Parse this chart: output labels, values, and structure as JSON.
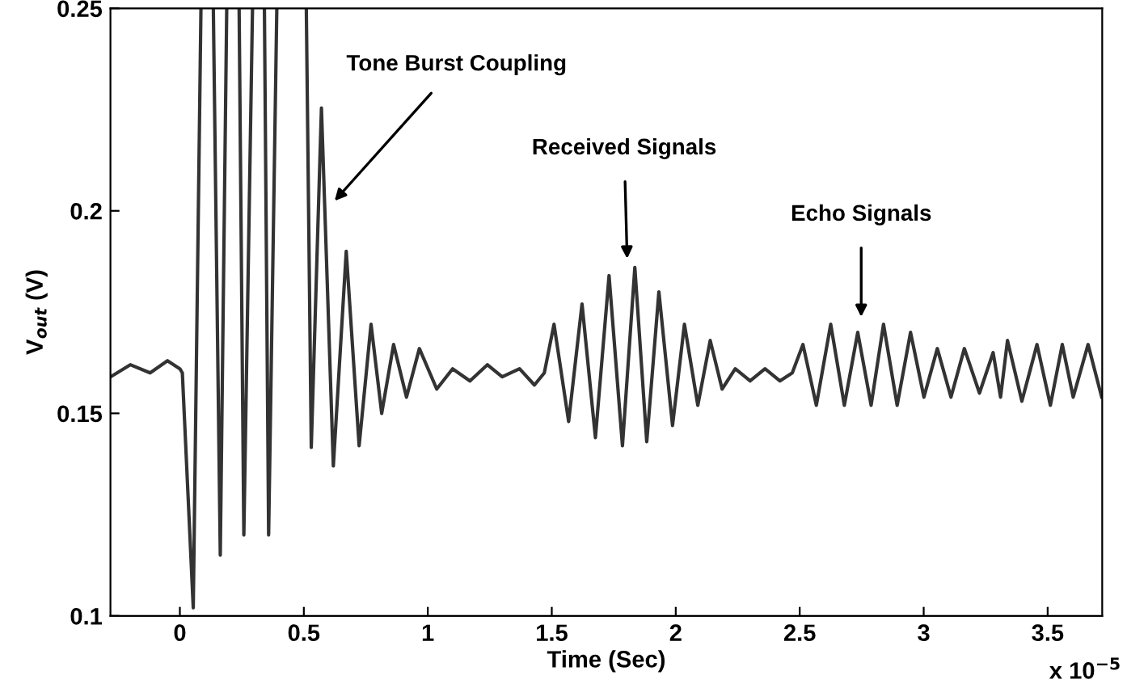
{
  "chart_data": {
    "type": "line",
    "xlabel": "Time (Sec)",
    "ylabel": "V$_{out}$ (V)",
    "xlim": [
      -0.28,
      3.72
    ],
    "ylim": [
      0.1,
      0.25
    ],
    "xticks": [
      0,
      0.5,
      1,
      1.5,
      2,
      2.5,
      3,
      3.5
    ],
    "yticks": [
      0.1,
      0.15,
      0.2,
      0.25
    ],
    "grid": false,
    "marker": "none",
    "line_style": "solid",
    "series": [
      {
        "color": "#333333",
        "x": [
          -0.28,
          -0.2,
          -0.12,
          -0.05,
          0.0,
          0.01,
          0.054,
          0.085,
          0.11,
          0.135,
          0.163,
          0.189,
          0.21,
          0.239,
          0.258,
          0.293,
          0.32,
          0.341,
          0.358,
          0.391,
          0.45,
          0.51,
          0.53,
          0.571,
          0.619,
          0.671,
          0.723,
          0.771,
          0.814,
          0.862,
          0.914,
          0.966,
          1.036,
          1.1,
          1.17,
          1.24,
          1.3,
          1.37,
          1.43,
          1.47,
          1.509,
          1.568,
          1.622,
          1.676,
          1.731,
          1.785,
          1.835,
          1.883,
          1.932,
          1.987,
          2.035,
          2.089,
          2.139,
          2.187,
          2.24,
          2.3,
          2.36,
          2.42,
          2.47,
          2.513,
          2.567,
          2.625,
          2.68,
          2.734,
          2.788,
          2.838,
          2.893,
          2.947,
          3.001,
          3.055,
          3.11,
          3.164,
          3.225,
          3.28,
          3.31,
          3.338,
          3.396,
          3.457,
          3.511,
          3.559,
          3.603,
          3.663,
          3.718
        ],
        "values": [
          0.159,
          0.162,
          0.16,
          0.163,
          0.161,
          0.16,
          0.102,
          0.25,
          null,
          0.25,
          0.115,
          0.25,
          null,
          0.25,
          0.12,
          0.25,
          null,
          0.25,
          0.12,
          0.25,
          null,
          0.25,
          0.1416,
          0.2254,
          0.137,
          0.19,
          0.142,
          0.172,
          0.15,
          0.167,
          0.154,
          0.166,
          0.156,
          0.161,
          0.158,
          0.162,
          0.159,
          0.161,
          0.157,
          0.16,
          0.172,
          0.148,
          0.177,
          0.144,
          0.184,
          0.142,
          0.186,
          0.143,
          0.18,
          0.147,
          0.172,
          0.152,
          0.168,
          0.156,
          0.161,
          0.158,
          0.161,
          0.158,
          0.16,
          0.167,
          0.152,
          0.172,
          0.152,
          0.17,
          0.152,
          0.172,
          0.152,
          0.17,
          0.154,
          0.166,
          0.154,
          0.166,
          0.155,
          0.165,
          0.154,
          0.168,
          0.153,
          0.167,
          0.152,
          0.167,
          0.154,
          0.167,
          0.154
        ]
      }
    ],
    "annotations": [
      "Tone Burst Coupling",
      "Received Signals",
      "Echo Signals",
      "x 10$^{−5}$"
    ]
  }
}
